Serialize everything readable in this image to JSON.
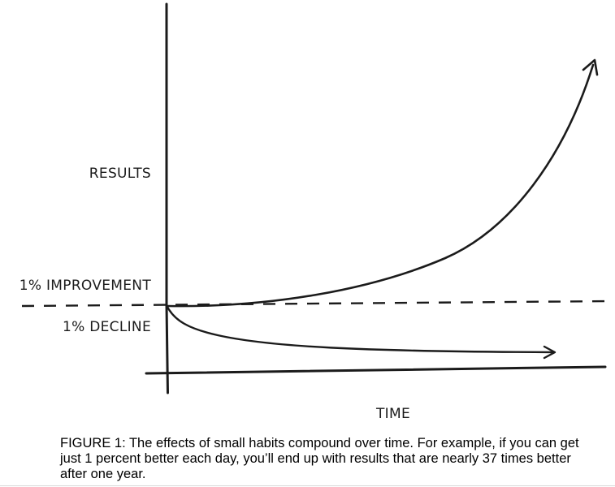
{
  "figure": {
    "y_axis_label": "RESULTS",
    "x_axis_label": "TIME",
    "improvement_label": "1% IMPROVEMENT",
    "decline_label": "1% DECLINE",
    "caption": "FIGURE 1: The effects of small habits compound over time. For example, if you can get just 1 percent better each day, you’ll end up with results that are nearly 37 times better after one year.",
    "colors": {
      "ink": "#1b1b1b",
      "background": "#ffffff"
    }
  }
}
